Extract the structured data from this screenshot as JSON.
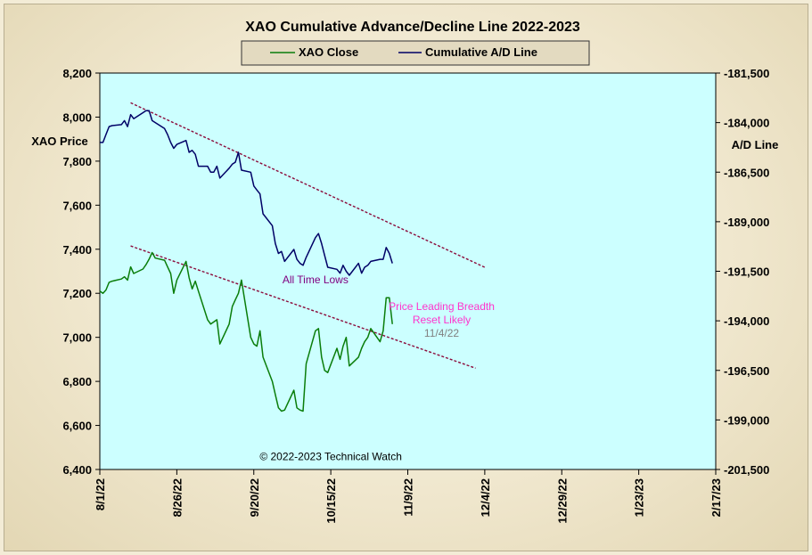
{
  "chart_data": {
    "type": "line",
    "title": "XAO Cumulative Advance/Decline Line 2022-2023",
    "legend": [
      "XAO Close",
      "Cumulative A/D Line"
    ],
    "legend_position": "top-center",
    "ylabel_left": "XAO Price",
    "ylabel_right": "A/D Line",
    "y_left_lim": [
      6400,
      8200
    ],
    "y_right_lim": [
      -201500,
      -181500
    ],
    "y_left_ticks": [
      "8,200",
      "8,000",
      "7,800",
      "7,600",
      "7,400",
      "7,200",
      "7,000",
      "6,800",
      "6,600",
      "6,400"
    ],
    "y_right_ticks": [
      "-181,500",
      "-184,000",
      "-186,500",
      "-189,000",
      "-191,500",
      "-194,000",
      "-196,500",
      "-199,000",
      "-201,500"
    ],
    "x_ticks": [
      "8/1/22",
      "8/26/22",
      "9/20/22",
      "10/15/22",
      "11/9/22",
      "12/4/22",
      "12/29/22",
      "1/23/23",
      "2/17/23"
    ],
    "grid": false,
    "colors": {
      "xao": "#0a7d0a",
      "ad": "#000066",
      "plot_bg": "#ccffff",
      "trend": "#8b0a3a",
      "title": "#000000"
    },
    "series": [
      {
        "name": "XAO Close",
        "axis": "left",
        "x": [
          "8/1/22",
          "8/2/22",
          "8/3/22",
          "8/4/22",
          "8/5/22",
          "8/8/22",
          "8/9/22",
          "8/10/22",
          "8/11/22",
          "8/12/22",
          "8/15/22",
          "8/16/22",
          "8/17/22",
          "8/18/22",
          "8/19/22",
          "8/22/22",
          "8/23/22",
          "8/24/22",
          "8/25/22",
          "8/26/22",
          "8/29/22",
          "8/30/22",
          "8/31/22",
          "9/1/22",
          "9/2/22",
          "9/5/22",
          "9/6/22",
          "9/7/22",
          "9/8/22",
          "9/9/22",
          "9/12/22",
          "9/13/22",
          "9/14/22",
          "9/15/22",
          "9/16/22",
          "9/19/22",
          "9/20/22",
          "9/21/22",
          "9/22/22",
          "9/23/22",
          "9/26/22",
          "9/27/22",
          "9/28/22",
          "9/29/22",
          "9/30/22",
          "10/3/22",
          "10/4/22",
          "10/5/22",
          "10/6/22",
          "10/7/22",
          "10/10/22",
          "10/11/22",
          "10/12/22",
          "10/13/22",
          "10/14/22",
          "10/17/22",
          "10/18/22",
          "10/19/22",
          "10/20/22",
          "10/21/22",
          "10/24/22",
          "10/25/22",
          "10/26/22",
          "10/27/22",
          "10/28/22",
          "10/31/22",
          "11/1/22",
          "11/2/22",
          "11/3/22",
          "11/4/22"
        ],
        "values": [
          7210,
          7200,
          7215,
          7250,
          7255,
          7265,
          7275,
          7260,
          7320,
          7290,
          7310,
          7330,
          7355,
          7385,
          7360,
          7350,
          7320,
          7290,
          7200,
          7260,
          7345,
          7270,
          7220,
          7255,
          7210,
          7080,
          7060,
          7070,
          7080,
          6970,
          7060,
          7140,
          7170,
          7200,
          7260,
          7000,
          6970,
          6960,
          7030,
          6910,
          6800,
          6740,
          6680,
          6665,
          6670,
          6760,
          6680,
          6670,
          6665,
          6880,
          7030,
          7040,
          6910,
          6850,
          6840,
          6950,
          6900,
          6960,
          7000,
          6870,
          6910,
          6950,
          6980,
          7000,
          7040,
          6980,
          7030,
          7180,
          7180,
          7060
        ]
      },
      {
        "name": "Cumulative A/D Line",
        "axis": "right",
        "x": [
          "8/1/22",
          "8/2/22",
          "8/3/22",
          "8/4/22",
          "8/5/22",
          "8/8/22",
          "8/9/22",
          "8/10/22",
          "8/11/22",
          "8/12/22",
          "8/15/22",
          "8/16/22",
          "8/17/22",
          "8/18/22",
          "8/19/22",
          "8/22/22",
          "8/23/22",
          "8/24/22",
          "8/25/22",
          "8/26/22",
          "8/29/22",
          "8/30/22",
          "8/31/22",
          "9/1/22",
          "9/2/22",
          "9/5/22",
          "9/6/22",
          "9/7/22",
          "9/8/22",
          "9/9/22",
          "9/12/22",
          "9/13/22",
          "9/14/22",
          "9/15/22",
          "9/16/22",
          "9/19/22",
          "9/20/22",
          "9/21/22",
          "9/22/22",
          "9/23/22",
          "9/26/22",
          "9/27/22",
          "9/28/22",
          "9/29/22",
          "9/30/22",
          "10/3/22",
          "10/4/22",
          "10/5/22",
          "10/6/22",
          "10/7/22",
          "10/10/22",
          "10/11/22",
          "10/12/22",
          "10/13/22",
          "10/14/22",
          "10/17/22",
          "10/18/22",
          "10/19/22",
          "10/20/22",
          "10/21/22",
          "10/24/22",
          "10/25/22",
          "10/26/22",
          "10/27/22",
          "10/28/22",
          "10/31/22",
          "11/1/22",
          "11/2/22",
          "11/3/22",
          "11/4/22"
        ],
        "values": [
          -185000,
          -185000,
          -184600,
          -184200,
          -184150,
          -184100,
          -183900,
          -184200,
          -183600,
          -183800,
          -183500,
          -183400,
          -183400,
          -183900,
          -184000,
          -184300,
          -184600,
          -185000,
          -185300,
          -185100,
          -184900,
          -185500,
          -185400,
          -185600,
          -186200,
          -186200,
          -186500,
          -186500,
          -186200,
          -186800,
          -186300,
          -186100,
          -186000,
          -185500,
          -186400,
          -186500,
          -187200,
          -187400,
          -187600,
          -188600,
          -189200,
          -190100,
          -190600,
          -190500,
          -191000,
          -190400,
          -190900,
          -191100,
          -191200,
          -190800,
          -189800,
          -189600,
          -190100,
          -190700,
          -191300,
          -191400,
          -191600,
          -191200,
          -191500,
          -191700,
          -191100,
          -191600,
          -191300,
          -191200,
          -191000,
          -190900,
          -190900,
          -190300,
          -190600,
          -191100
        ]
      }
    ],
    "trendlines": [
      {
        "axis": "right",
        "x": [
          "8/11/22",
          "12/4/22"
        ],
        "y": [
          -183000,
          -191300
        ]
      },
      {
        "axis": "left",
        "x": [
          "8/11/22",
          "12/1/22"
        ],
        "y": [
          7415,
          6860
        ]
      }
    ],
    "annotations": [
      {
        "text": "All Time Lows",
        "x": "10/10/22",
        "y": 7245,
        "axis": "left",
        "color": "#800080"
      },
      {
        "text": "Price Leading Breadth",
        "x": "11/20/22",
        "y": 7125,
        "axis": "left",
        "color": "#ff33cc"
      },
      {
        "text": "Reset Likely",
        "x": "11/20/22",
        "y": 7063,
        "axis": "left",
        "color": "#ff33cc"
      },
      {
        "text": "11/4/22",
        "x": "11/20/22",
        "y": 7003,
        "axis": "left",
        "color": "#808080"
      },
      {
        "text": "© 2022-2023  Technical Watch",
        "x": "10/15/22",
        "y": 6442,
        "axis": "left",
        "color": "#000000"
      }
    ]
  }
}
